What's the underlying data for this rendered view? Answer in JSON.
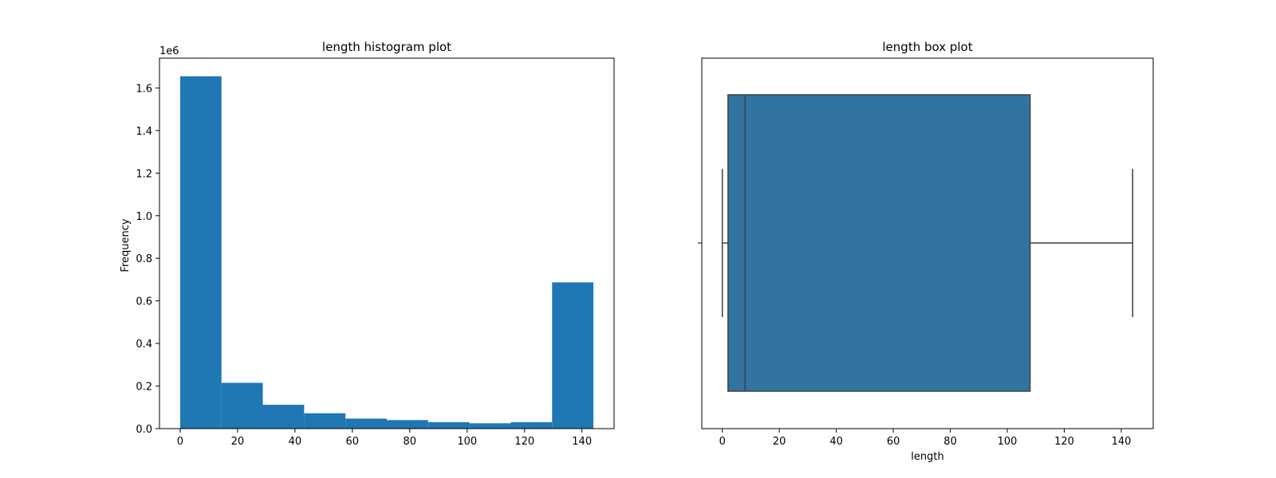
{
  "chart_data": [
    {
      "type": "bar",
      "subtype": "histogram",
      "title": "length histogram plot",
      "xlabel": "",
      "ylabel": "Frequency",
      "y_offset_text": "1e6",
      "xlim": [
        -7.2,
        151.2
      ],
      "ylim": [
        0,
        1.74
      ],
      "y_scale_label": "values in units of 1e6",
      "bin_edges": [
        0,
        14.4,
        28.8,
        43.2,
        57.6,
        72,
        86.4,
        100.8,
        115.2,
        129.6,
        144
      ],
      "values": [
        1.655,
        0.215,
        0.112,
        0.072,
        0.047,
        0.04,
        0.03,
        0.025,
        0.03,
        0.687
      ],
      "x_ticks": [
        0,
        20,
        40,
        60,
        80,
        100,
        120,
        140
      ],
      "x_tick_labels": [
        "0",
        "20",
        "40",
        "60",
        "80",
        "100",
        "120",
        "140"
      ],
      "y_ticks": [
        0,
        0.2,
        0.4,
        0.6,
        0.8,
        1.0,
        1.2,
        1.4,
        1.6
      ],
      "y_tick_labels": [
        "0.0",
        "0.2",
        "0.4",
        "0.6",
        "0.8",
        "1.0",
        "1.2",
        "1.4",
        "1.6"
      ],
      "grid": false,
      "color": "#1f77b4"
    },
    {
      "type": "box",
      "title": "length box plot",
      "xlabel": "length",
      "ylabel": "",
      "xlim": [
        -7.2,
        151.2
      ],
      "whisker_low": 0,
      "q1": 2,
      "median": 8,
      "q3": 108,
      "whisker_high": 144,
      "x_ticks": [
        0,
        20,
        40,
        60,
        80,
        100,
        120,
        140
      ],
      "x_tick_labels": [
        "0",
        "20",
        "40",
        "60",
        "80",
        "100",
        "120",
        "140"
      ],
      "grid": false,
      "color": "#3274a1",
      "line_color": "#3f3f3f"
    }
  ]
}
